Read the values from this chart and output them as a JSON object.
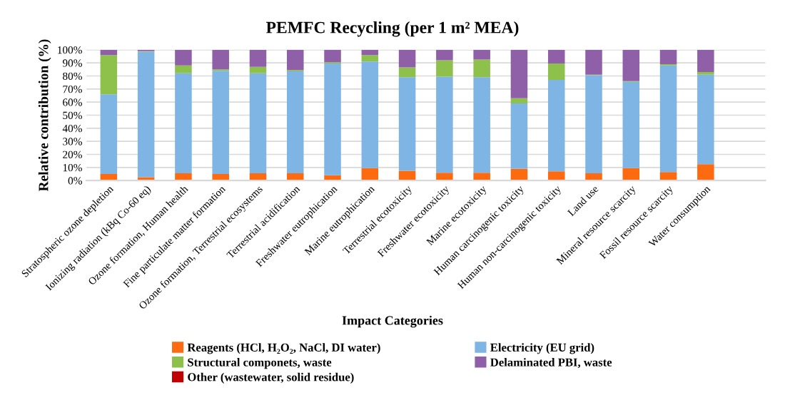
{
  "chart_data": {
    "type": "bar",
    "stacked": true,
    "title": "PEMFC Recycling (per 1 m² MEA)",
    "xlabel": "Impact Categories",
    "ylabel": "Relative contribution (%)",
    "categories": [
      "Stratospheric ozone depletion",
      "Ionizing radiation (kBq Co-60 eq)",
      "Ozone formation, Human health",
      "Fine particulate matter formation",
      "Ozone formation, Terrestrial ecosystems",
      "Terrestrial acidification",
      "Freshwater eutrophication",
      "Marine eutrophication",
      "Terrestrial ecotoxicity",
      "Freshwater ecotoxicity",
      "Marine ecotoxicity",
      "Human carcinogenic toxicity",
      "Human non-carcinogenic toxicity",
      "Land use",
      "Mineral resource scarcity",
      "Fossil resource scarcity",
      "Water consumption"
    ],
    "series": [
      {
        "name": "Reagents (HCl, H₂O₂, NaCl, DI water)",
        "color": "#fd6a10",
        "values": [
          5,
          2.5,
          5.5,
          5,
          5.5,
          5.5,
          4,
          9.5,
          7.5,
          6,
          6,
          9,
          7,
          5.5,
          9.5,
          6.5,
          12.5
        ]
      },
      {
        "name": "Electricity (EU grid)",
        "color": "#7eb5e4",
        "values": [
          61,
          96,
          76.5,
          79,
          76.5,
          78,
          85.5,
          81.5,
          71.5,
          73.5,
          73,
          50,
          70,
          75,
          66,
          81.5,
          68.5
        ]
      },
      {
        "name": "Structural componets, waste",
        "color": "#8ec04c",
        "values": [
          30,
          0.5,
          6,
          1,
          5,
          1,
          1,
          5,
          7.5,
          12.5,
          13.5,
          4,
          12.5,
          0.5,
          0.5,
          1,
          2
        ]
      },
      {
        "name": "Delaminated PBI, waste",
        "color": "#8f5fa8",
        "values": [
          4,
          1,
          12,
          15,
          13,
          15.5,
          9.5,
          4,
          13.5,
          8,
          7.5,
          37,
          10.5,
          19,
          24,
          11,
          17
        ]
      },
      {
        "name": "Other (wastewater, solid residue)",
        "color": "#c00000",
        "values": [
          0,
          0,
          0,
          0,
          0,
          0,
          0,
          0,
          0,
          0,
          0,
          0,
          0,
          0,
          0,
          0,
          0
        ]
      }
    ],
    "ylim": [
      0,
      100
    ],
    "yticks": [
      {
        "value": 0,
        "label": "0%"
      },
      {
        "value": 10,
        "label": "10%"
      },
      {
        "value": 20,
        "label": "20%"
      },
      {
        "value": 30,
        "label": "30%"
      },
      {
        "value": 40,
        "label": "40%"
      },
      {
        "value": 50,
        "label": "50%"
      },
      {
        "value": 60,
        "label": "60%"
      },
      {
        "value": 70,
        "label": "70%"
      },
      {
        "value": 80,
        "label": "80%"
      },
      {
        "value": 90,
        "label": "90%"
      },
      {
        "value": 100,
        "label": "100%"
      }
    ],
    "grid": "y",
    "legend": "bottom"
  }
}
